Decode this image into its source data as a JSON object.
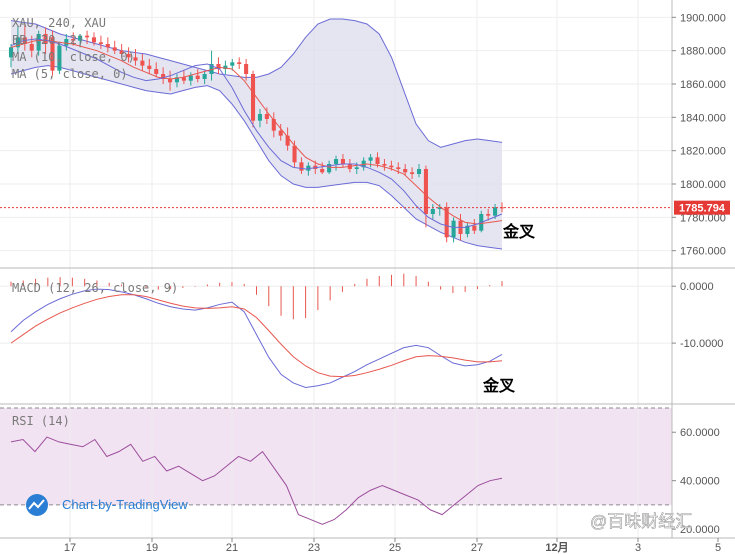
{
  "symbol_line": "XAU, 240, XAU",
  "indicator_labels": {
    "bb": "BB (20, 2)",
    "ma10": "MA (10, close, 0)",
    "ma5": "MA (5, close, 0)",
    "macd": "MACD (12, 26, close, 9)",
    "rsi": "RSI (14)"
  },
  "annotations": {
    "golden_cross_price": "金叉",
    "golden_cross_macd": "金叉"
  },
  "branding": {
    "tradingview": "Chart-by-TradingView",
    "watermark": "@百味财经汇"
  },
  "current_price": {
    "label": "1785.794",
    "color": "#e53935"
  },
  "colors": {
    "up": "#26a69a",
    "down": "#ef5350",
    "bb": "#6b6bd6",
    "bb_fill": "#dcdcee",
    "ma_red": "#e8574f",
    "macd_line": "#6b6bd6",
    "signal_line": "#e8574f",
    "rsi_line": "#9c4e9c",
    "rsi_band": "#f2e3f2",
    "grid": "#eeeeee"
  },
  "chart_data": [
    {
      "type": "candlestick",
      "panel": "price",
      "ylim": [
        1752,
        1908
      ],
      "y_ticks": [
        "1900.000",
        "1880.000",
        "1860.000",
        "1840.000",
        "1820.000",
        "1800.000",
        "1780.000",
        "1760.000"
      ],
      "x_ticks": [
        "17",
        "19",
        "21",
        "23",
        "25",
        "27",
        "12月",
        "3",
        "5"
      ],
      "candles": [
        {
          "o": 1876,
          "h": 1884,
          "l": 1870,
          "c": 1882
        },
        {
          "o": 1882,
          "h": 1895,
          "l": 1878,
          "c": 1888
        },
        {
          "o": 1888,
          "h": 1896,
          "l": 1880,
          "c": 1884
        },
        {
          "o": 1884,
          "h": 1889,
          "l": 1876,
          "c": 1880
        },
        {
          "o": 1880,
          "h": 1892,
          "l": 1877,
          "c": 1890
        },
        {
          "o": 1890,
          "h": 1894,
          "l": 1878,
          "c": 1884
        },
        {
          "o": 1888,
          "h": 1892,
          "l": 1865,
          "c": 1868
        },
        {
          "o": 1868,
          "h": 1884,
          "l": 1866,
          "c": 1883
        },
        {
          "o": 1883,
          "h": 1890,
          "l": 1880,
          "c": 1887
        },
        {
          "o": 1887,
          "h": 1891,
          "l": 1883,
          "c": 1886
        },
        {
          "o": 1886,
          "h": 1890,
          "l": 1882,
          "c": 1889
        },
        {
          "o": 1889,
          "h": 1892,
          "l": 1884,
          "c": 1888
        },
        {
          "o": 1888,
          "h": 1891,
          "l": 1883,
          "c": 1885
        },
        {
          "o": 1885,
          "h": 1889,
          "l": 1881,
          "c": 1884
        },
        {
          "o": 1884,
          "h": 1888,
          "l": 1879,
          "c": 1882
        },
        {
          "o": 1882,
          "h": 1886,
          "l": 1878,
          "c": 1880
        },
        {
          "o": 1880,
          "h": 1884,
          "l": 1876,
          "c": 1878
        },
        {
          "o": 1878,
          "h": 1882,
          "l": 1873,
          "c": 1876
        },
        {
          "o": 1876,
          "h": 1881,
          "l": 1871,
          "c": 1874
        },
        {
          "o": 1874,
          "h": 1878,
          "l": 1868,
          "c": 1871
        },
        {
          "o": 1871,
          "h": 1875,
          "l": 1866,
          "c": 1869
        },
        {
          "o": 1869,
          "h": 1873,
          "l": 1864,
          "c": 1866
        },
        {
          "o": 1866,
          "h": 1870,
          "l": 1860,
          "c": 1863
        },
        {
          "o": 1863,
          "h": 1868,
          "l": 1856,
          "c": 1861
        },
        {
          "o": 1861,
          "h": 1866,
          "l": 1858,
          "c": 1864
        },
        {
          "o": 1864,
          "h": 1868,
          "l": 1860,
          "c": 1862
        },
        {
          "o": 1862,
          "h": 1867,
          "l": 1859,
          "c": 1865
        },
        {
          "o": 1865,
          "h": 1869,
          "l": 1861,
          "c": 1863
        },
        {
          "o": 1863,
          "h": 1868,
          "l": 1860,
          "c": 1866
        },
        {
          "o": 1866,
          "h": 1880,
          "l": 1862,
          "c": 1872
        },
        {
          "o": 1872,
          "h": 1876,
          "l": 1866,
          "c": 1869
        },
        {
          "o": 1869,
          "h": 1874,
          "l": 1866,
          "c": 1871
        },
        {
          "o": 1871,
          "h": 1875,
          "l": 1868,
          "c": 1873
        },
        {
          "o": 1873,
          "h": 1876,
          "l": 1869,
          "c": 1872
        },
        {
          "o": 1872,
          "h": 1875,
          "l": 1862,
          "c": 1866
        },
        {
          "o": 1866,
          "h": 1868,
          "l": 1834,
          "c": 1838
        },
        {
          "o": 1838,
          "h": 1845,
          "l": 1834,
          "c": 1842
        },
        {
          "o": 1842,
          "h": 1846,
          "l": 1836,
          "c": 1839
        },
        {
          "o": 1839,
          "h": 1843,
          "l": 1828,
          "c": 1832
        },
        {
          "o": 1832,
          "h": 1836,
          "l": 1826,
          "c": 1829
        },
        {
          "o": 1829,
          "h": 1834,
          "l": 1820,
          "c": 1823
        },
        {
          "o": 1823,
          "h": 1826,
          "l": 1810,
          "c": 1813
        },
        {
          "o": 1813,
          "h": 1816,
          "l": 1806,
          "c": 1808
        },
        {
          "o": 1808,
          "h": 1813,
          "l": 1805,
          "c": 1811
        },
        {
          "o": 1811,
          "h": 1814,
          "l": 1806,
          "c": 1809
        },
        {
          "o": 1809,
          "h": 1813,
          "l": 1806,
          "c": 1807
        },
        {
          "o": 1807,
          "h": 1814,
          "l": 1806,
          "c": 1812
        },
        {
          "o": 1812,
          "h": 1817,
          "l": 1808,
          "c": 1815
        },
        {
          "o": 1815,
          "h": 1818,
          "l": 1810,
          "c": 1812
        },
        {
          "o": 1812,
          "h": 1815,
          "l": 1807,
          "c": 1809
        },
        {
          "o": 1809,
          "h": 1813,
          "l": 1806,
          "c": 1810
        },
        {
          "o": 1810,
          "h": 1816,
          "l": 1808,
          "c": 1814
        },
        {
          "o": 1814,
          "h": 1818,
          "l": 1810,
          "c": 1816
        },
        {
          "o": 1816,
          "h": 1819,
          "l": 1810,
          "c": 1812
        },
        {
          "o": 1812,
          "h": 1815,
          "l": 1808,
          "c": 1811
        },
        {
          "o": 1811,
          "h": 1814,
          "l": 1808,
          "c": 1810
        },
        {
          "o": 1810,
          "h": 1813,
          "l": 1806,
          "c": 1809
        },
        {
          "o": 1809,
          "h": 1812,
          "l": 1805,
          "c": 1807
        },
        {
          "o": 1807,
          "h": 1810,
          "l": 1803,
          "c": 1806
        },
        {
          "o": 1806,
          "h": 1812,
          "l": 1804,
          "c": 1809
        },
        {
          "o": 1809,
          "h": 1811,
          "l": 1774,
          "c": 1782
        },
        {
          "o": 1782,
          "h": 1788,
          "l": 1779,
          "c": 1785
        },
        {
          "o": 1785,
          "h": 1788,
          "l": 1781,
          "c": 1786
        },
        {
          "o": 1786,
          "h": 1789,
          "l": 1765,
          "c": 1768
        },
        {
          "o": 1768,
          "h": 1780,
          "l": 1765,
          "c": 1778
        },
        {
          "o": 1778,
          "h": 1782,
          "l": 1766,
          "c": 1770
        },
        {
          "o": 1770,
          "h": 1777,
          "l": 1768,
          "c": 1775
        },
        {
          "o": 1775,
          "h": 1779,
          "l": 1770,
          "c": 1772
        },
        {
          "o": 1772,
          "h": 1784,
          "l": 1771,
          "c": 1782
        },
        {
          "o": 1782,
          "h": 1785,
          "l": 1778,
          "c": 1781
        },
        {
          "o": 1781,
          "h": 1788,
          "l": 1779,
          "c": 1786
        },
        {
          "o": 1786,
          "h": 1789,
          "l": 1783,
          "c": 1785.8
        }
      ],
      "bb_upper": [
        1898,
        1897,
        1896,
        1893,
        1890,
        1888,
        1886,
        1884,
        1882,
        1880,
        1879,
        1878,
        1876,
        1874,
        1872,
        1870,
        1868,
        1866,
        1865,
        1864,
        1864,
        1866,
        1870,
        1878,
        1888,
        1896,
        1899,
        1899,
        1898,
        1896,
        1890,
        1876,
        1856,
        1836,
        1826,
        1822,
        1824,
        1826,
        1827,
        1826,
        1825
      ],
      "bb_lower": [
        1866,
        1868,
        1870,
        1871,
        1870,
        1868,
        1866,
        1864,
        1862,
        1860,
        1858,
        1856,
        1855,
        1854,
        1856,
        1858,
        1859,
        1856,
        1848,
        1838,
        1826,
        1814,
        1805,
        1800,
        1798,
        1798,
        1799,
        1800,
        1801,
        1801,
        1799,
        1793,
        1786,
        1779,
        1775,
        1771,
        1768,
        1765,
        1763,
        1762,
        1761
      ],
      "bb_mid": [
        1882,
        1883,
        1883,
        1882,
        1880,
        1878,
        1876,
        1874,
        1872,
        1870,
        1869,
        1868,
        1867,
        1866,
        1866,
        1866,
        1865,
        1862,
        1857,
        1851,
        1845,
        1840,
        1836,
        1831,
        1826,
        1821,
        1818,
        1815,
        1814,
        1813,
        1812,
        1808,
        1803,
        1798,
        1796,
        1794,
        1792,
        1790,
        1788,
        1787,
        1786
      ],
      "ma10": [
        1882,
        1884,
        1886,
        1886,
        1885,
        1884,
        1882,
        1880,
        1877,
        1874,
        1870,
        1867,
        1864,
        1863,
        1864,
        1866,
        1868,
        1870,
        1869,
        1862,
        1852,
        1842,
        1833,
        1824,
        1816,
        1812,
        1810,
        1810,
        1811,
        1812,
        1811,
        1809,
        1806,
        1799,
        1792,
        1786,
        1781,
        1777,
        1776,
        1777,
        1778
      ],
      "ma5": [
        1883,
        1886,
        1887,
        1886,
        1884,
        1881,
        1878,
        1875,
        1871,
        1867,
        1864,
        1862,
        1863,
        1865,
        1868,
        1871,
        1872,
        1869,
        1858,
        1844,
        1832,
        1822,
        1814,
        1810,
        1809,
        1810,
        1811,
        1812,
        1812,
        1810,
        1807,
        1803,
        1796,
        1787,
        1780,
        1776,
        1774,
        1774,
        1776,
        1779,
        1782
      ]
    },
    {
      "type": "macd",
      "panel": "macd",
      "ylim": [
        -20,
        2.5
      ],
      "y_ticks": [
        "0.0000",
        "-10.0000"
      ],
      "macd": [
        -8.0,
        -6.0,
        -4.5,
        -3.2,
        -2.2,
        -1.4,
        -0.8,
        -0.5,
        -0.6,
        -1.0,
        -1.5,
        -2.2,
        -3.0,
        -3.6,
        -4.0,
        -4.2,
        -3.8,
        -3.2,
        -2.8,
        -4.5,
        -8.5,
        -12.5,
        -15.5,
        -17.0,
        -17.8,
        -17.5,
        -17.0,
        -16.0,
        -15.0,
        -13.8,
        -12.8,
        -11.8,
        -10.8,
        -10.4,
        -10.8,
        -12.2,
        -13.5,
        -14.0,
        -13.8,
        -13.2,
        -12.0
      ],
      "signal": [
        -10.0,
        -8.5,
        -7.0,
        -5.8,
        -4.7,
        -3.8,
        -3.0,
        -2.3,
        -1.8,
        -1.5,
        -1.5,
        -1.8,
        -2.4,
        -3.0,
        -3.5,
        -3.8,
        -3.9,
        -3.8,
        -3.6,
        -4.0,
        -5.5,
        -7.8,
        -10.2,
        -12.4,
        -14.0,
        -15.2,
        -15.8,
        -15.9,
        -15.7,
        -15.2,
        -14.6,
        -13.9,
        -13.1,
        -12.4,
        -12.2,
        -12.3,
        -12.6,
        -13.0,
        -13.3,
        -13.3,
        -13.1
      ],
      "histogram": [
        0.8,
        1.0,
        1.3,
        1.5,
        1.6,
        1.5,
        1.3,
        1.0,
        0.6,
        0.3,
        0.0,
        -0.3,
        -0.6,
        -0.5,
        -0.3,
        -0.1,
        0.3,
        0.6,
        0.7,
        0.4,
        -1.5,
        -3.5,
        -5.2,
        -5.8,
        -5.6,
        -4.2,
        -2.5,
        -1.0,
        0.4,
        1.3,
        1.8,
        2.0,
        2.2,
        1.8,
        0.8,
        -0.6,
        -1.2,
        -1.0,
        -0.5,
        0.2,
        0.9
      ]
    },
    {
      "type": "line",
      "panel": "rsi",
      "ylim": [
        18,
        70
      ],
      "y_ticks": [
        "60.0000",
        "40.0000",
        "20.0000"
      ],
      "band": [
        30,
        70
      ],
      "values": [
        56,
        57,
        52,
        58,
        56,
        55,
        54,
        57,
        50,
        52,
        55,
        48,
        50,
        44,
        46,
        43,
        40,
        42,
        46,
        50,
        48,
        52,
        45,
        38,
        26,
        24,
        22,
        24,
        28,
        33,
        36,
        38,
        36,
        34,
        32,
        28,
        26,
        30,
        34,
        38,
        40,
        41
      ]
    }
  ]
}
